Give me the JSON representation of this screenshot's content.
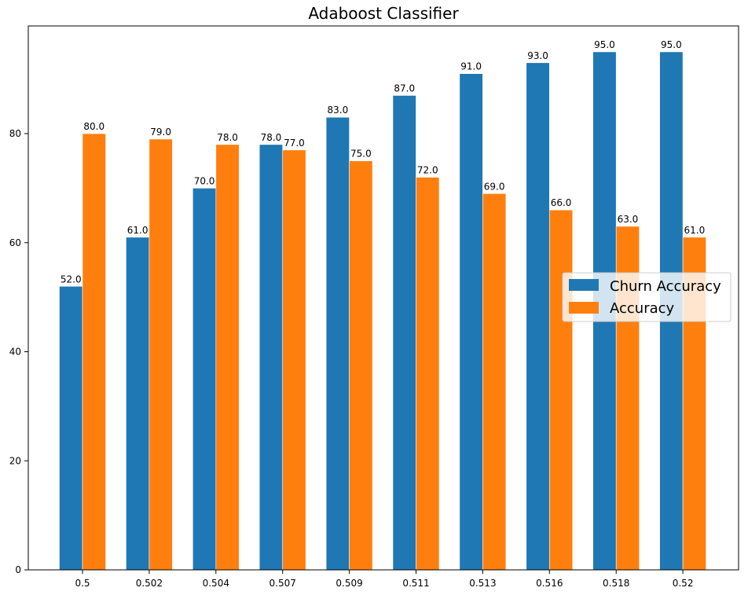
{
  "chart_data": {
    "type": "bar",
    "title": "Adaboost Classifier",
    "xlabel": "",
    "ylabel": "",
    "categories": [
      "0.5",
      "0.502",
      "0.504",
      "0.507",
      "0.509",
      "0.511",
      "0.513",
      "0.516",
      "0.518",
      "0.52"
    ],
    "series": [
      {
        "name": "Churn Accuracy",
        "color": "#1f77b4",
        "values": [
          52,
          61,
          70,
          78,
          83,
          87,
          91,
          93,
          95,
          95
        ],
        "labels": [
          "52.0",
          "61.0",
          "70.0",
          "78.0",
          "83.0",
          "87.0",
          "91.0",
          "93.0",
          "95.0",
          "95.0"
        ]
      },
      {
        "name": "Accuracy",
        "color": "#ff7f0e",
        "values": [
          80,
          79,
          78,
          77,
          75,
          72,
          69,
          66,
          63,
          61
        ],
        "labels": [
          "80.0",
          "79.0",
          "78.0",
          "77.0",
          "75.0",
          "72.0",
          "69.0",
          "66.0",
          "63.0",
          "61.0"
        ]
      }
    ],
    "ylim": [
      0,
      99.75
    ],
    "yticks": [
      0,
      20,
      40,
      60,
      80
    ],
    "ytick_labels": [
      "0",
      "20",
      "40",
      "60",
      "80"
    ],
    "grid": false,
    "legend_position": "center-right"
  }
}
